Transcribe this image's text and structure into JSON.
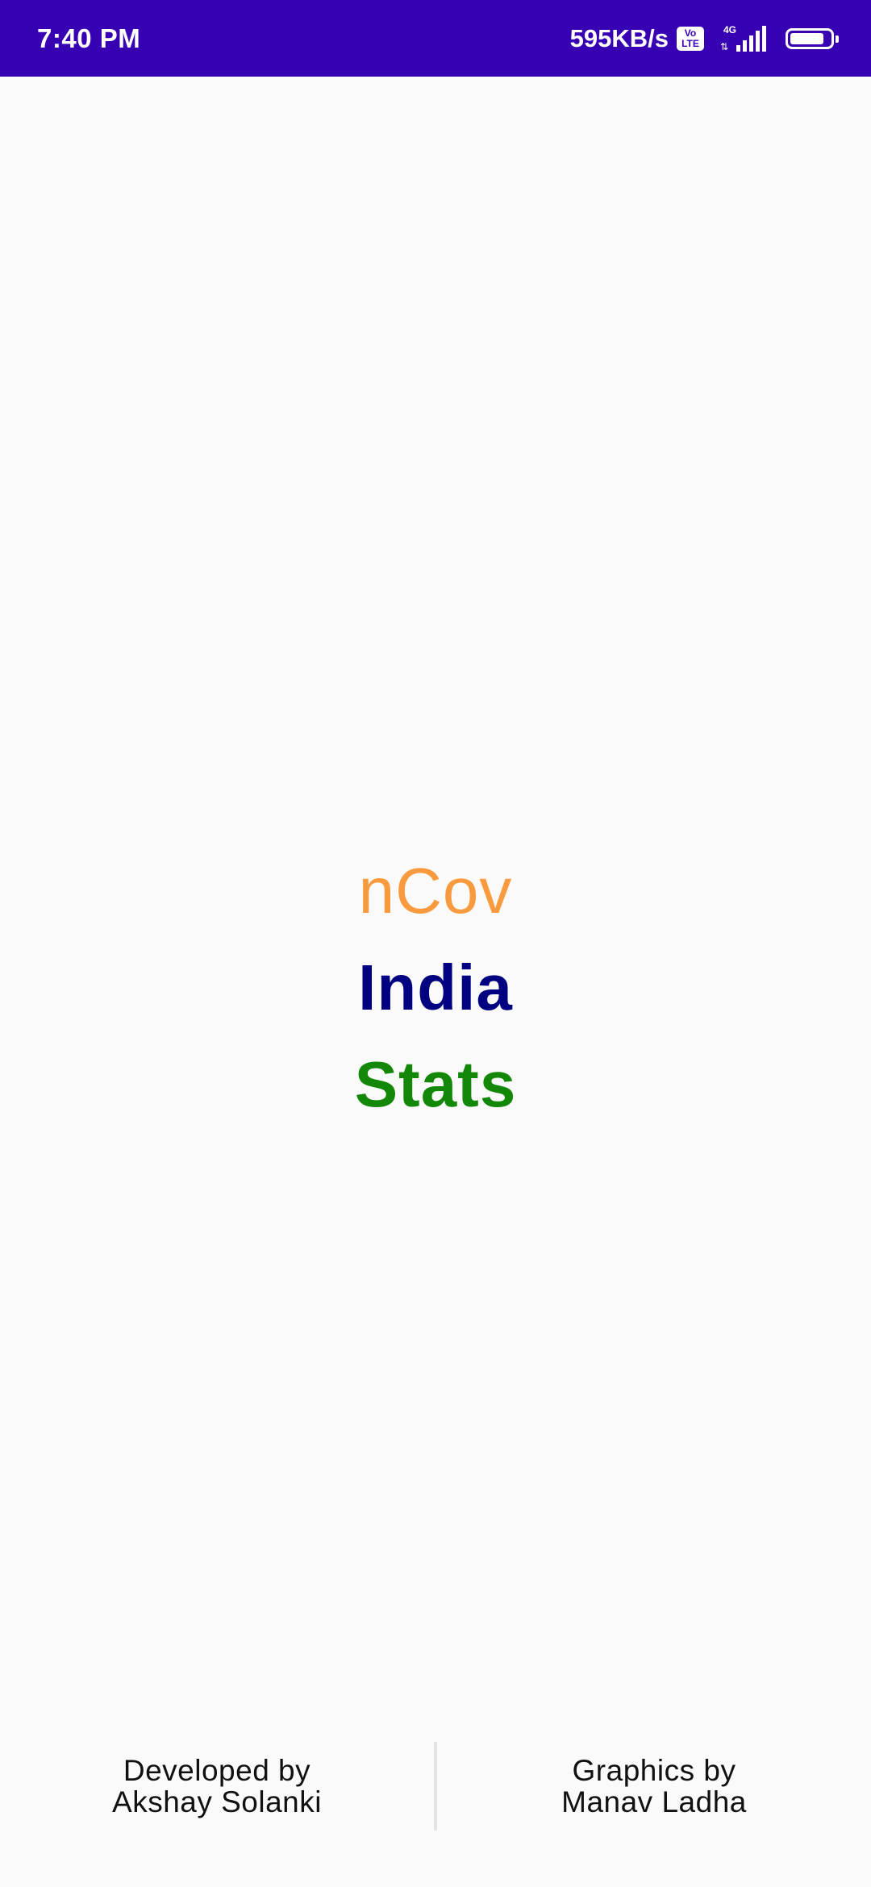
{
  "status_bar": {
    "time": "7:40 PM",
    "network_speed": "595KB/s",
    "volte_top": "Vo",
    "volte_bottom": "LTE",
    "network_type": "4G",
    "data_arrows": "⇅",
    "battery_level": 0.85,
    "accent_color": "#3700b3"
  },
  "title": {
    "line1": "nCov",
    "line2": "India",
    "line3": "Stats",
    "colors": {
      "line1": "#f99a3e",
      "line2": "#000080",
      "line3": "#138808"
    }
  },
  "footer": {
    "developer_label": "Developed by",
    "developer_name": "Akshay Solanki",
    "graphics_label": "Graphics by",
    "graphics_name": "Manav Ladha"
  }
}
